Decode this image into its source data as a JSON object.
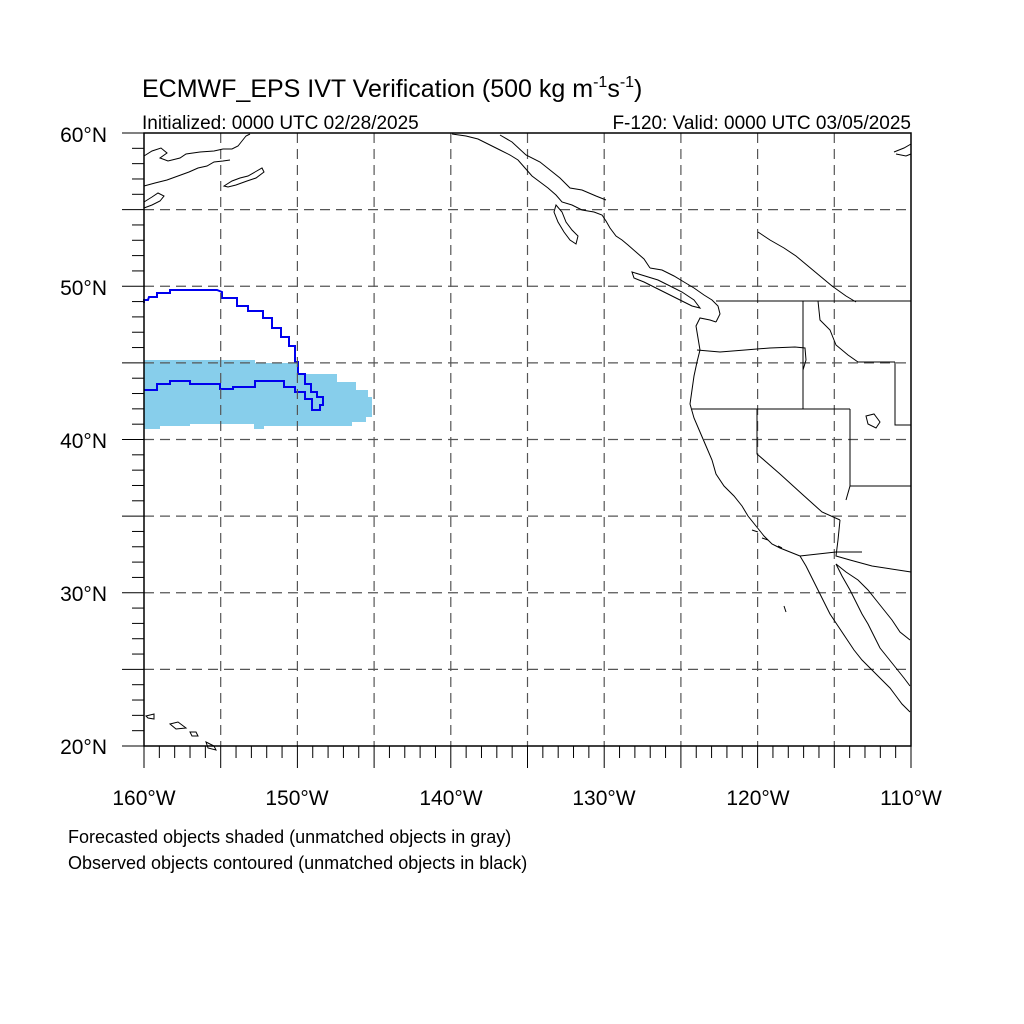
{
  "title_main": "ECMWF_EPS IVT Verification (500 kg m",
  "title_exp1": "-1",
  "title_mid": "s",
  "title_exp2": "-1",
  "title_end": ")",
  "initialized": "Initialized: 0000 UTC 02/28/2025",
  "valid": "F-120: Valid: 0000 UTC 03/05/2025",
  "lat_labels": [
    "60°N",
    "50°N",
    "40°N",
    "30°N",
    "20°N"
  ],
  "lon_labels": [
    "160°W",
    "150°W",
    "140°W",
    "130°W",
    "120°W",
    "110°W"
  ],
  "footnotes": [
    "Forecasted objects shaded (unmatched objects in gray)",
    "Observed objects contoured (unmatched objects in black)"
  ],
  "colors": {
    "forecast_fill": "#87ceeb",
    "observed_contour": "#0000ee",
    "coast": "#000000",
    "grid": "#555555"
  },
  "map": {
    "lon_range": [
      -160,
      -110
    ],
    "lat_range": [
      20,
      60
    ],
    "grid_lon_step": 5,
    "grid_lat_step": 5
  }
}
